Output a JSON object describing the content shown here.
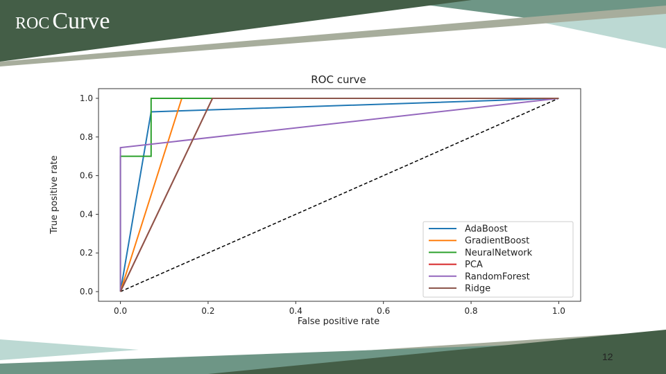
{
  "slide": {
    "title_part1": "ROC",
    "title_part2": "Curve",
    "page_number": "12"
  },
  "colors": {
    "dark_green": "#445e47",
    "teal": "#6e9686",
    "light_teal": "#bcd9d3",
    "olive_gray": "#a7ad9c"
  },
  "chart_data": {
    "type": "line",
    "title": "ROC curve",
    "xlabel": "False positive rate",
    "ylabel": "True positive rate",
    "xlim": [
      -0.05,
      1.05
    ],
    "ylim": [
      -0.05,
      1.05
    ],
    "xticks": [
      0.0,
      0.2,
      0.4,
      0.6,
      0.8,
      1.0
    ],
    "yticks": [
      0.0,
      0.2,
      0.4,
      0.6,
      0.8,
      1.0
    ],
    "legend_position": "bottom-right",
    "grid": false,
    "baseline": {
      "x": [
        0,
        1
      ],
      "y": [
        0,
        1
      ],
      "color": "#000000",
      "style": "dashed"
    },
    "series": [
      {
        "name": "AdaBoost",
        "color": "#1f77b4",
        "x": [
          0,
          0.07,
          1.0
        ],
        "y": [
          0,
          0.93,
          1.0
        ]
      },
      {
        "name": "GradientBoost",
        "color": "#ff7f0e",
        "x": [
          0,
          0.14,
          1.0
        ],
        "y": [
          0,
          1.0,
          1.0
        ]
      },
      {
        "name": "NeuralNetwork",
        "color": "#2ca02c",
        "x": [
          0,
          0,
          0.07,
          0.07,
          1.0
        ],
        "y": [
          0,
          0.7,
          0.7,
          1.0,
          1.0
        ]
      },
      {
        "name": "PCA",
        "color": "#d62728",
        "x": [
          0,
          0.21,
          1.0
        ],
        "y": [
          0,
          1.0,
          1.0
        ]
      },
      {
        "name": "RandomForest",
        "color": "#9467bd",
        "x": [
          0,
          0,
          1.0
        ],
        "y": [
          0,
          0.745,
          1.0
        ]
      },
      {
        "name": "Ridge",
        "color": "#8c564b",
        "x": [
          0,
          0.21,
          1.0
        ],
        "y": [
          0,
          1.0,
          1.0
        ]
      }
    ]
  }
}
